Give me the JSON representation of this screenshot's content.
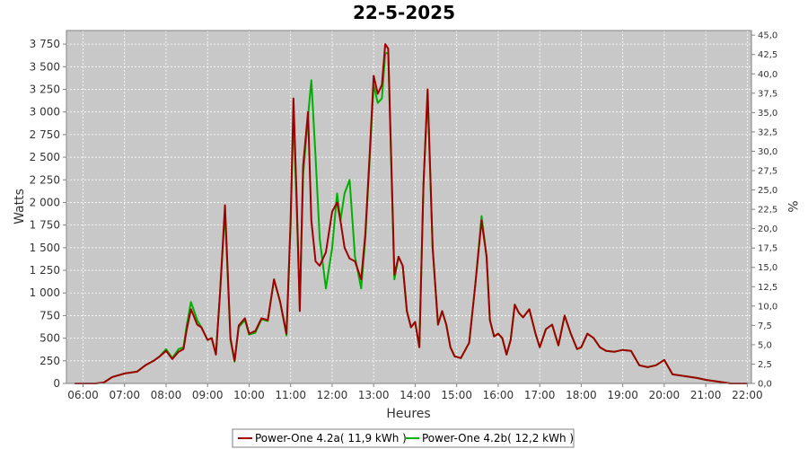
{
  "chart_data": {
    "type": "line",
    "title": "22-5-2025",
    "xlabel": "Heures",
    "ylabel": "Watts",
    "y2label": "%",
    "xlim": [
      5.6,
      22.1
    ],
    "ylim": [
      0,
      3900
    ],
    "y2lim": [
      0,
      45.6
    ],
    "x_ticks": [
      6,
      7,
      8,
      9,
      10,
      11,
      12,
      13,
      14,
      15,
      16,
      17,
      18,
      19,
      20,
      21,
      22
    ],
    "x_tick_labels": [
      "06:00",
      "07:00",
      "08:00",
      "09:00",
      "10:00",
      "11:00",
      "12:00",
      "13:00",
      "14:00",
      "15:00",
      "16:00",
      "17:00",
      "18:00",
      "19:00",
      "20:00",
      "21:00",
      "22:00"
    ],
    "y_ticks": [
      0,
      250,
      500,
      750,
      1000,
      1250,
      1500,
      1750,
      2000,
      2250,
      2500,
      2750,
      3000,
      3250,
      3500,
      3750
    ],
    "y_tick_labels": [
      "0",
      "250",
      "500",
      "750",
      "1 000",
      "1 250",
      "1 500",
      "1 750",
      "2 000",
      "2 250",
      "2 500",
      "2 750",
      "3 000",
      "3 250",
      "3 500",
      "3 750"
    ],
    "y2_ticks": [
      0,
      2.5,
      5,
      7.5,
      10,
      12.5,
      15,
      17.5,
      20,
      22.5,
      25,
      27.5,
      30,
      32.5,
      35,
      37.5,
      40,
      42.5,
      45
    ],
    "y2_tick_labels": [
      "0,0",
      "2,5",
      "5,0",
      "7,5",
      "10,0",
      "12,5",
      "15,0",
      "17,5",
      "20,0",
      "22,5",
      "25,0",
      "27,5",
      "30,0",
      "32,5",
      "35,0",
      "37,5",
      "40,0",
      "42,5",
      "45,0"
    ],
    "grid": true,
    "legend_position": "bottom",
    "background": "#c8c8c8",
    "series": [
      {
        "name": "Power-One 4.2a( 11,9 kWh )",
        "color": "#a00000",
        "x": [
          5.8,
          6.0,
          6.3,
          6.5,
          6.7,
          7.0,
          7.3,
          7.5,
          7.7,
          7.85,
          8.0,
          8.15,
          8.3,
          8.42,
          8.5,
          8.6,
          8.75,
          8.85,
          9.0,
          9.1,
          9.2,
          9.3,
          9.42,
          9.55,
          9.65,
          9.75,
          9.9,
          10.0,
          10.15,
          10.3,
          10.45,
          10.6,
          10.75,
          10.9,
          11.0,
          11.07,
          11.15,
          11.22,
          11.3,
          11.42,
          11.5,
          11.6,
          11.7,
          11.85,
          12.0,
          12.12,
          12.2,
          12.3,
          12.42,
          12.55,
          12.7,
          12.8,
          12.9,
          13.0,
          13.1,
          13.2,
          13.28,
          13.35,
          13.5,
          13.6,
          13.7,
          13.8,
          13.9,
          14.0,
          14.1,
          14.2,
          14.3,
          14.42,
          14.55,
          14.65,
          14.75,
          14.85,
          14.95,
          15.1,
          15.3,
          15.45,
          15.6,
          15.72,
          15.8,
          15.9,
          16.0,
          16.1,
          16.2,
          16.3,
          16.4,
          16.5,
          16.6,
          16.75,
          16.9,
          17.0,
          17.15,
          17.3,
          17.45,
          17.6,
          17.75,
          17.9,
          18.0,
          18.15,
          18.3,
          18.45,
          18.6,
          18.8,
          19.0,
          19.2,
          19.4,
          19.6,
          19.8,
          20.0,
          20.2,
          20.5,
          20.8,
          21.0,
          21.3,
          21.6,
          22.0
        ],
        "values": [
          0,
          0,
          0,
          10,
          70,
          110,
          130,
          200,
          250,
          300,
          360,
          270,
          350,
          380,
          600,
          820,
          650,
          620,
          480,
          500,
          320,
          1000,
          1970,
          500,
          250,
          640,
          720,
          550,
          580,
          720,
          700,
          1150,
          900,
          550,
          1800,
          3150,
          2000,
          800,
          2400,
          3000,
          1800,
          1350,
          1300,
          1450,
          1900,
          2000,
          1800,
          1500,
          1380,
          1350,
          1150,
          1650,
          2500,
          3400,
          3200,
          3300,
          3750,
          3700,
          1200,
          1400,
          1300,
          800,
          620,
          680,
          400,
          2200,
          3250,
          1500,
          650,
          800,
          650,
          400,
          300,
          280,
          450,
          1100,
          1800,
          1400,
          700,
          520,
          550,
          500,
          320,
          480,
          870,
          780,
          730,
          820,
          550,
          400,
          600,
          650,
          420,
          750,
          550,
          380,
          400,
          550,
          500,
          400,
          360,
          350,
          370,
          360,
          200,
          180,
          200,
          260,
          100,
          80,
          60,
          40,
          20,
          0,
          0
        ]
      },
      {
        "name": "Power-One 4.2b( 12,2 kWh )",
        "color": "#00b000",
        "x": [
          5.8,
          6.0,
          6.3,
          6.5,
          6.7,
          7.0,
          7.3,
          7.5,
          7.7,
          7.85,
          8.0,
          8.15,
          8.3,
          8.42,
          8.5,
          8.6,
          8.75,
          8.85,
          9.0,
          9.1,
          9.2,
          9.3,
          9.42,
          9.55,
          9.65,
          9.75,
          9.9,
          10.0,
          10.15,
          10.3,
          10.45,
          10.6,
          10.75,
          10.9,
          11.0,
          11.07,
          11.15,
          11.22,
          11.3,
          11.42,
          11.5,
          11.6,
          11.7,
          11.85,
          12.0,
          12.12,
          12.2,
          12.3,
          12.42,
          12.55,
          12.7,
          12.8,
          12.9,
          13.0,
          13.1,
          13.2,
          13.28,
          13.35,
          13.5,
          13.6,
          13.7,
          13.8,
          13.9,
          14.0,
          14.1,
          14.2,
          14.3,
          14.42,
          14.55,
          14.65,
          14.75,
          14.85,
          14.95,
          15.1,
          15.3,
          15.45,
          15.6,
          15.72,
          15.8,
          15.9,
          16.0,
          16.1,
          16.2,
          16.3,
          16.4,
          16.5,
          16.6,
          16.75,
          16.9,
          17.0,
          17.15,
          17.3,
          17.45,
          17.6,
          17.75,
          17.9,
          18.0,
          18.15,
          18.3,
          18.45,
          18.6,
          18.8,
          19.0,
          19.2,
          19.4,
          19.6,
          19.8,
          20.0,
          20.2,
          20.5,
          20.8,
          21.0,
          21.3,
          21.6,
          22.0
        ],
        "values": [
          0,
          0,
          0,
          10,
          70,
          110,
          130,
          200,
          250,
          300,
          380,
          280,
          380,
          400,
          650,
          900,
          700,
          620,
          480,
          500,
          320,
          1000,
          1900,
          480,
          240,
          620,
          700,
          540,
          560,
          710,
          690,
          1150,
          900,
          530,
          1750,
          3000,
          1900,
          850,
          2300,
          2950,
          3350,
          2500,
          1600,
          1050,
          1500,
          2100,
          1800,
          2100,
          2250,
          1400,
          1050,
          1600,
          2450,
          3300,
          3100,
          3150,
          3650,
          3650,
          1150,
          1400,
          1300,
          800,
          620,
          680,
          400,
          2200,
          3200,
          1500,
          650,
          800,
          650,
          400,
          300,
          280,
          450,
          1100,
          1850,
          1400,
          700,
          520,
          550,
          500,
          320,
          480,
          870,
          780,
          730,
          820,
          550,
          400,
          600,
          650,
          420,
          750,
          550,
          380,
          400,
          550,
          500,
          400,
          360,
          350,
          370,
          360,
          200,
          180,
          200,
          260,
          100,
          80,
          60,
          40,
          20,
          0,
          0
        ]
      }
    ]
  }
}
